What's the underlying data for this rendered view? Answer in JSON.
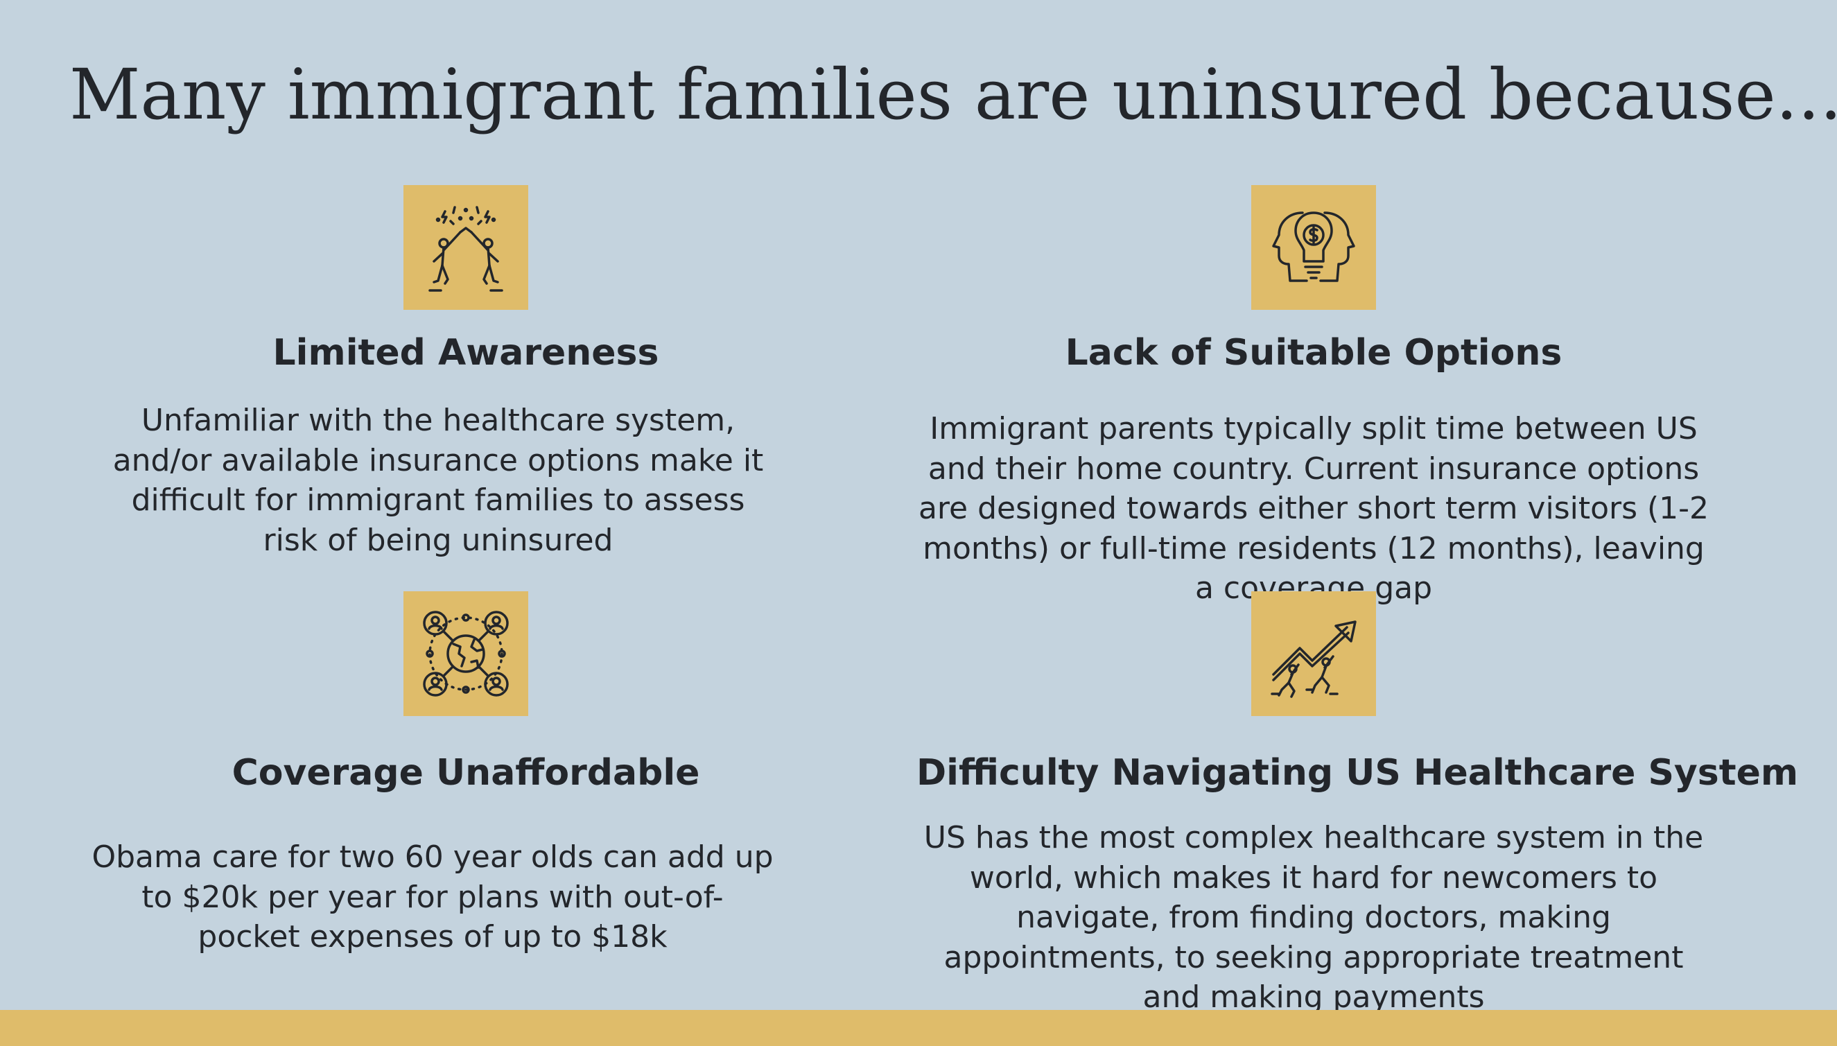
{
  "title": "Many immigrant families are uninsured because...",
  "accent_color": "#dfbc6a",
  "background_color": "#c4d3de",
  "cards": [
    {
      "icon": "celebrating-people-icon",
      "heading": "Limited Awareness",
      "text": "Unfamiliar with the healthcare system, and/or available insurance options make it difficult for immigrant families to assess risk of being uninsured"
    },
    {
      "icon": "heads-with-money-bulb-icon",
      "heading": "Lack of Suitable Options",
      "text": "Immigrant parents typically split time between US and their home country. Current insurance options are designed towards either short term visitors (1-2 months) or full-time residents (12 months), leaving a coverage gap"
    },
    {
      "icon": "global-network-icon",
      "heading": "Coverage Unaffordable",
      "text": "Obama care for two 60 year olds can add up to $20k per year for plans with out-of-pocket expenses of up to $18k"
    },
    {
      "icon": "people-pushing-growth-arrow-icon",
      "heading": "Difficulty Navigating US Healthcare System",
      "text": "US has the most complex healthcare system in the world, which makes it hard for newcomers to navigate, from finding doctors, making appointments, to seeking appropriate treatment and making payments"
    }
  ]
}
